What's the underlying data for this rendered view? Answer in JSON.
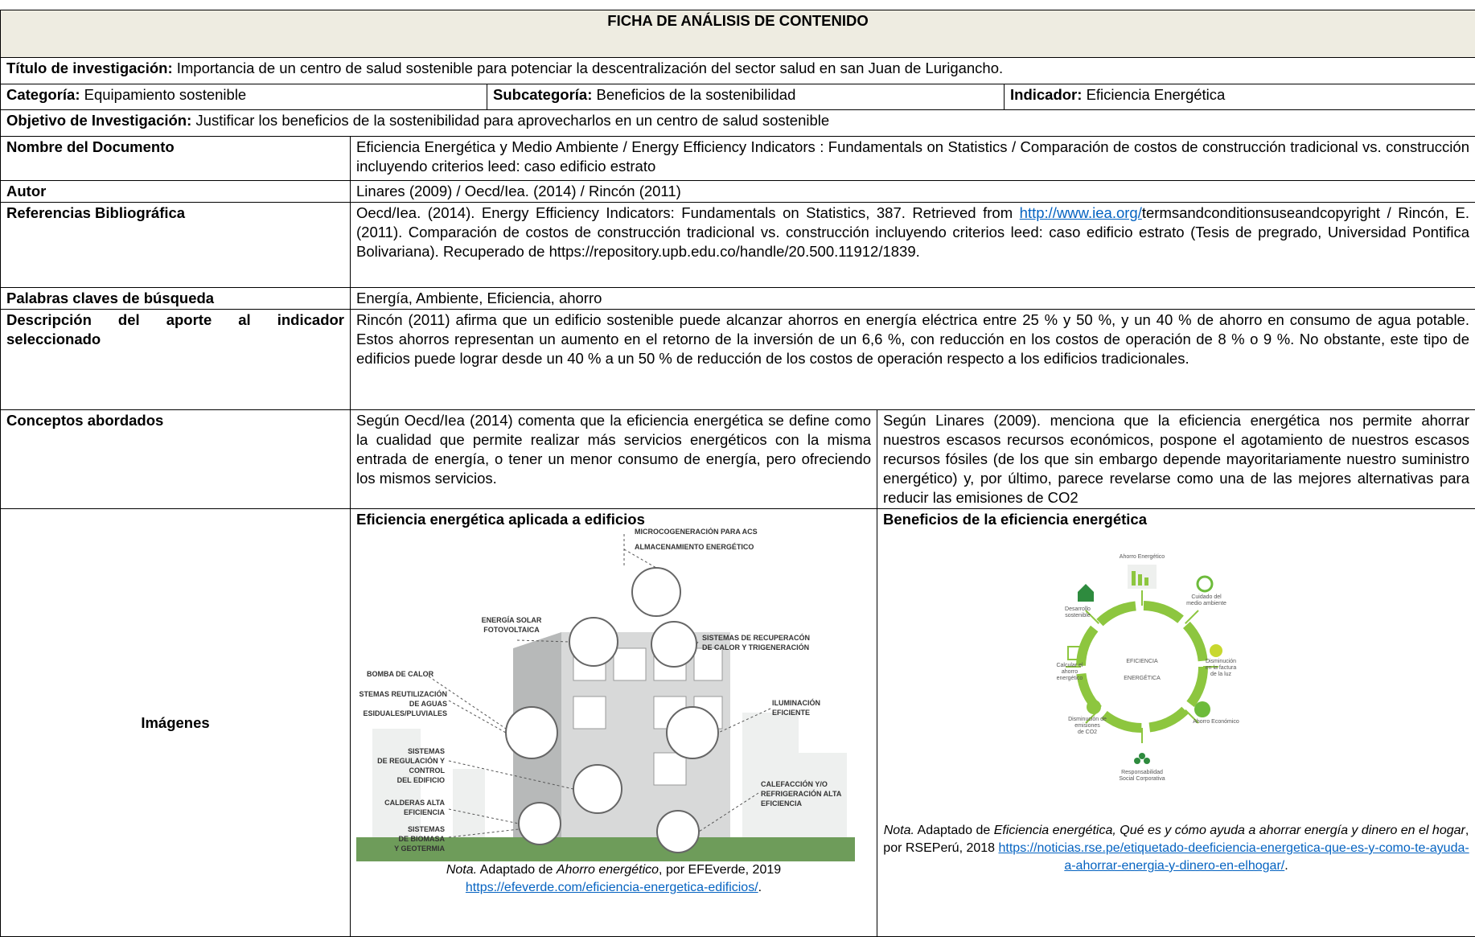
{
  "header": {
    "title": "FICHA DE ANÁLISIS DE CONTENIDO"
  },
  "research_title": {
    "label": "Título de investigación:",
    "text": "Importancia de un centro de salud sostenible para potenciar la descentralización del sector salud en san Juan de Lurigancho."
  },
  "category": {
    "label": "Categoría:",
    "text": "Equipamiento sostenible"
  },
  "subcategory": {
    "label": "Subcategoría:",
    "text": "Beneficios de la sostenibilidad"
  },
  "indicator": {
    "label": "Indicador:",
    "text": "Eficiencia Energética"
  },
  "objective": {
    "label": "Objetivo de Investigación:",
    "text": "Justificar los beneficios de la sostenibilidad para aprovecharlos en un centro de salud sostenible"
  },
  "document_name": {
    "label": "Nombre del Documento",
    "text": "Eficiencia Energética y Medio Ambiente / Energy Efficiency Indicators : Fundamentals on Statistics / Comparación de costos de construcción tradicional vs. construcción incluyendo criterios leed: caso edificio estrato"
  },
  "author": {
    "label": "Autor",
    "text": "Linares (2009) / Oecd/Iea. (2014) / Rincón (2011)"
  },
  "references": {
    "label": "Referencias Bibliográfica",
    "before": "Oecd/Iea. (2014). Energy Efficiency Indicators: Fundamentals on Statistics, 387. Retrieved from ",
    "link": "http://www.iea.org/",
    "after": "termsandconditionsuseandcopyright / Rincón, E. (2011). Comparación de costos de construcción tradicional vs. construcción incluyendo criterios leed: caso edificio estrato (Tesis de pregrado, Universidad Pontifica Bolivariana). Recuperado de https://repository.upb.edu.co/handle/20.500.11912/1839."
  },
  "keywords": {
    "label": "Palabras claves de búsqueda",
    "text": "Energía, Ambiente, Eficiencia, ahorro"
  },
  "description": {
    "label": "Descripción del aporte al indicador seleccionado",
    "text": "Rincón (2011) afirma que un edificio sostenible puede alcanzar ahorros en energía eléctrica entre 25 % y 50 %, y un 40 % de ahorro en consumo de agua potable. Estos ahorros representan un aumento en el retorno de la inversión de un 6,6 %, con reducción en los costos de operación de 8 % o 9 %. No obstante, este tipo de edificios puede lograr desde un 40 % a un 50 % de reducción de los costos de operación respecto a los edificios tradicionales."
  },
  "concepts": {
    "label": "Conceptos abordados",
    "left": "Según Oecd/Iea (2014) comenta que la eficiencia energética se define como la cualidad que permite realizar más servicios energéticos con la misma entrada de energía, o tener un menor consumo de energía, pero ofreciendo los mismos servicios.",
    "right": "Según Linares (2009). menciona que la eficiencia energética nos permite ahorrar nuestros escasos recursos económicos, pospone el agotamiento de nuestros escasos recursos fósiles (de los que sin embargo depende mayoritariamente nuestro suministro energético) y, por último, parece revelarse como una de las mejores alternativas para reducir las emisiones de CO2"
  },
  "images": {
    "label": "Imágenes",
    "left": {
      "title": "Eficiencia energética aplicada a edificios",
      "labels": [
        [
          "MICROCOGENERACIÓN PARA ACS"
        ],
        [
          "ALMACENAMIENTO ENERGÉTICO"
        ],
        [
          "ENERGÍA SOLAR",
          "FOTOVOLTAICA"
        ],
        [
          "SISTEMAS DE RECUPERACÓN",
          "DE CALOR Y TRIGENERACIÓN"
        ],
        [
          "BOMBA DE CALOR"
        ],
        [
          "STEMAS REUTILIZACIÓN",
          "DE AGUAS",
          "ESIDUALES/PLUVIALES"
        ],
        [
          "ILUMINACIÓN",
          "EFICIENTE"
        ],
        [
          "SISTEMAS",
          "DE REGULACIÓN Y",
          "CONTROL",
          "DEL EDIFICIO"
        ],
        [
          "CALDERAS ALTA",
          "EFICIENCIA"
        ],
        [
          "CALEFACCIÓN Y/O",
          "REFRIGERACIÓN ALTA",
          "EFICIENCIA"
        ],
        [
          "SISTEMAS",
          "DE BIOMASA",
          "Y GEOTERMIA"
        ]
      ],
      "note": {
        "nota": "Nota.",
        "adapted": " Adaptado de ",
        "source": "Ahorro energético",
        "by": ", por EFEverde, 2019",
        "link": "https://efeverde.com/eficiencia-energetica-edificios/",
        "end": "."
      }
    },
    "right": {
      "title": "Beneficios de la eficiencia energética",
      "center": [
        "EFICIENCIA",
        "ENERGÉTICA"
      ],
      "labels": [
        [
          "Ahorro Energético"
        ],
        [
          "Cuidado del",
          "medio ambiente"
        ],
        [
          "Disminución",
          "en la factura",
          "de la luz"
        ],
        [
          "Ahorro Económico"
        ],
        [
          "Responsabilidad",
          "Social Corporativa"
        ],
        [
          "Disminución de",
          "emisiones",
          "de CO2"
        ],
        [
          "Calcular el",
          "ahorro",
          "energético"
        ],
        [
          "Desarrollo",
          "sostenible"
        ]
      ],
      "note": {
        "nota": "Nota.",
        "adapted": " Adaptado de ",
        "source": "Eficiencia energética, Qué es y cómo ayuda a ahorrar energía y dinero en el hogar",
        "by": ", por RSEPerú, 2018 ",
        "link": "https://noticias.rse.pe/etiquetado-deeficiencia-energetica-que-es-y-como-te-ayuda-a-ahorrar-energia-y-dinero-en-elhogar/",
        "end": "."
      }
    }
  }
}
